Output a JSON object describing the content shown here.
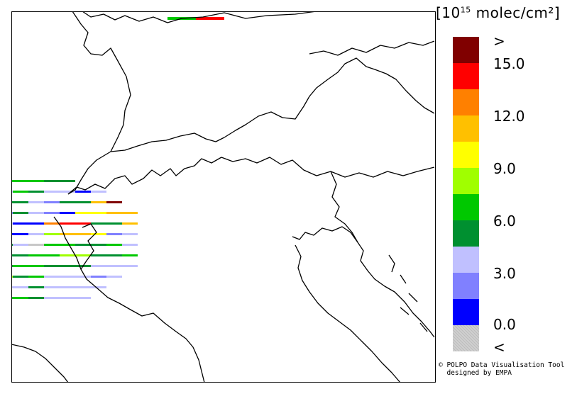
{
  "legend": {
    "unit_base": "[10",
    "unit_exp": "15",
    "unit_rest": " molec/cm²]",
    "bins": [
      {
        "label": ">",
        "color": "#800000"
      },
      {
        "label": "15.0",
        "color": "#ff0000"
      },
      {
        "label": "",
        "color": "#ff8000"
      },
      {
        "label": "12.0",
        "color": "#ffc000"
      },
      {
        "label": "",
        "color": "#ffff00"
      },
      {
        "label": "9.0",
        "color": "#a0ff00"
      },
      {
        "label": "",
        "color": "#00c800"
      },
      {
        "label": "6.0",
        "color": "#009030"
      },
      {
        "label": "",
        "color": "#c0c0ff"
      },
      {
        "label": "3.0",
        "color": "#8080ff"
      },
      {
        "label": "",
        "color": "#0000ff"
      },
      {
        "label": "0.0",
        "color": "#c8c8c8"
      },
      {
        "label": "<",
        "color": "#c8c8c8"
      }
    ]
  },
  "credit_line1": "© POLPO Data Visualisation Tool",
  "credit_line2": "designed by EMPA"
}
